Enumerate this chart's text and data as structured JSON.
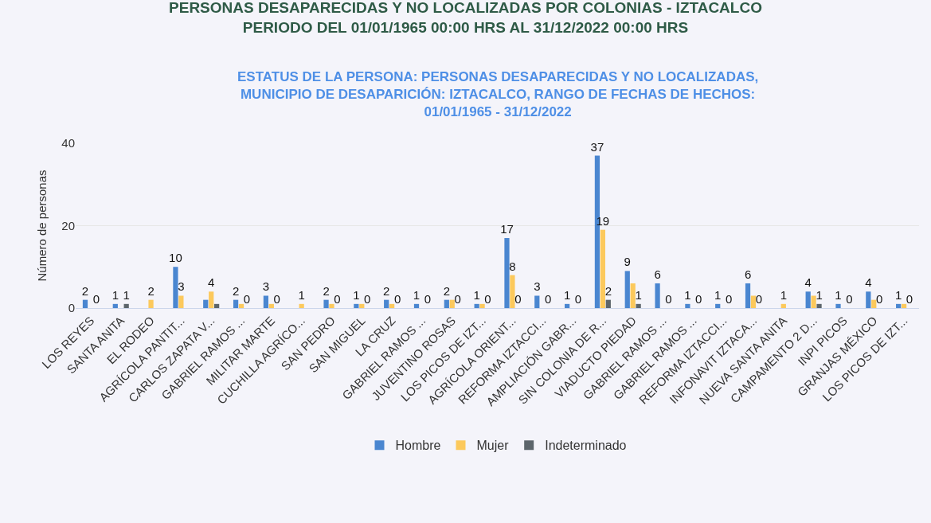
{
  "chart_data": {
    "type": "bar",
    "title": "PERSONAS DESAPARECIDAS Y NO LOCALIZADAS POR COLONIAS - IZTACALCO\nPERIODO DEL 01/01/1965 00:00 HRS AL 31/12/2022 00:00 HRS",
    "subtitle": "ESTATUS DE LA PERSONA: PERSONAS DESAPARECIDAS Y NO LOCALIZADAS,\nMUNICIPIO DE DESAPARICIÓN: IZTACALCO, RANGO DE FECHAS DE HECHOS:\n01/01/1965 - 31/12/2022",
    "ylabel": "Número de personas",
    "categories": [
      "LOS REYES",
      "SANTA ANITA",
      "EL RODEO",
      "AGRÍCOLA PANTIT...",
      "CARLOS ZAPATA V...",
      "GABRIEL RAMOS ...",
      "MILITAR MARTE",
      "CUCHILLA AGRÍCO...",
      "SAN PEDRO",
      "SAN MIGUEL",
      "LA CRUZ",
      "GABRIEL RAMOS ...",
      "JUVENTINO ROSAS",
      "LOS PICOS DE IZT...",
      "AGRÍCOLA ORIENT...",
      "REFORMA IZTACCI...",
      "AMPLIACIÓN GABR...",
      "SIN COLONIA DE R...",
      "VIADUCTO PIEDAD",
      "GABRIEL RAMOS ...",
      "GABRIEL RAMOS ...",
      "REFORMA IZTACCI...",
      "INFONAVIT IZTACA...",
      "NUEVA SANTA ANITA",
      "CAMPAMENTO 2 D...",
      "INPI PICOS",
      "GRANJAS MÉXICO",
      "LOS PICOS DE IZT..."
    ],
    "series": [
      {
        "name": "Hombre",
        "color": "#4a86d0",
        "values": [
          2,
          1,
          0,
          10,
          2,
          2,
          3,
          0,
          2,
          1,
          2,
          1,
          2,
          1,
          17,
          3,
          1,
          37,
          9,
          6,
          1,
          1,
          6,
          0,
          4,
          1,
          4,
          1
        ],
        "value_labels": [
          "2",
          "1",
          null,
          "10",
          null,
          "2",
          "3",
          null,
          "2",
          "1",
          "2",
          "1",
          "2",
          "1",
          "17",
          "3",
          "1",
          "37",
          "9",
          "6",
          "1",
          "1",
          "6",
          null,
          "4",
          "1",
          "4",
          "1"
        ]
      },
      {
        "name": "Mujer",
        "color": "#fcc95c",
        "values": [
          0,
          0,
          2,
          3,
          4,
          1,
          1,
          1,
          1,
          1,
          1,
          0,
          2,
          1,
          8,
          0,
          0,
          19,
          6,
          0,
          0,
          0,
          3,
          1,
          3,
          0,
          2,
          1
        ],
        "value_labels": [
          null,
          null,
          "2",
          "3",
          "4",
          null,
          null,
          "1",
          null,
          null,
          null,
          null,
          null,
          null,
          "8",
          null,
          null,
          "19",
          null,
          null,
          null,
          null,
          null,
          "1",
          null,
          null,
          null,
          null
        ]
      },
      {
        "name": "Indeterminado",
        "color": "#5c656b",
        "values": [
          0,
          1,
          0,
          0,
          1,
          0,
          0,
          0,
          0,
          0,
          0,
          0,
          0,
          0,
          0,
          0,
          0,
          2,
          1,
          0,
          0,
          0,
          0,
          0,
          1,
          0,
          0,
          0
        ],
        "value_labels": [
          "0",
          "1",
          null,
          null,
          null,
          "0",
          "0",
          null,
          "0",
          "0",
          "0",
          "0",
          "0",
          "0",
          "0",
          "0",
          "0",
          "2",
          "1",
          "0",
          "0",
          "0",
          "0",
          null,
          "1",
          "0",
          "0",
          "0"
        ]
      }
    ],
    "ylim": [
      0,
      40
    ],
    "yticks": [
      0,
      20,
      40
    ],
    "grid": "y",
    "legend": "bottom"
  }
}
